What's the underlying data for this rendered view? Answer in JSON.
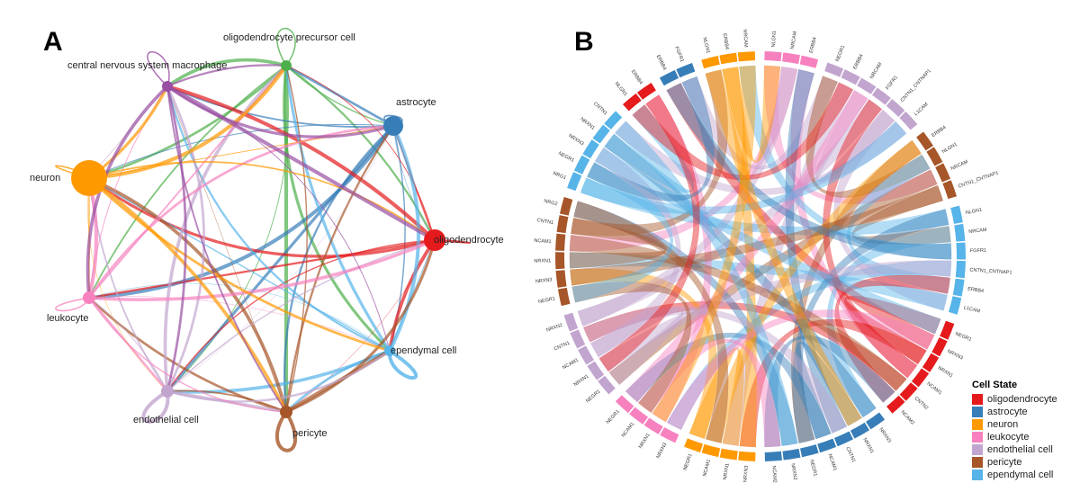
{
  "panel_a": {
    "letter": "A",
    "nodes": [
      {
        "label": "oligodendrocyte precursor cell",
        "color": "#4daf4a"
      },
      {
        "label": "astrocyte",
        "color": "#377eb8"
      },
      {
        "label": "oligodendrocyte",
        "color": "#e41a1c"
      },
      {
        "label": "ependymal cell",
        "color": "#56b4e9"
      },
      {
        "label": "pericyte",
        "color": "#a65628"
      },
      {
        "label": "endothelial cell",
        "color": "#c2a5cf"
      },
      {
        "label": "leukocyte",
        "color": "#f781bf"
      },
      {
        "label": "neuron",
        "color": "#ff9900"
      },
      {
        "label": "central nervous system macrophage",
        "color": "#984ea3"
      }
    ]
  },
  "panel_b": {
    "letter": "B",
    "groups": [
      {
        "color": "#f781bf",
        "genes": [
          "NLGN1",
          "NRCAM",
          "ERBB4"
        ]
      },
      {
        "color": "#c2a5cf",
        "genes": [
          "NEGR1",
          "ERBB4",
          "NRCAM",
          "FGFR1",
          "CNTN1_CNTNAP1",
          "L1CAM"
        ]
      },
      {
        "color": "#a65628",
        "genes": [
          "ERBB4",
          "NLGN1",
          "NRCAM",
          "CNTN1_CNTNAP1"
        ]
      },
      {
        "color": "#56b4e9",
        "genes": [
          "NLGN1",
          "NRCAM",
          "FGFR1",
          "CNTN1_CNTNAP1",
          "ERBB4",
          "L1CAM"
        ]
      },
      {
        "color": "#e41a1c",
        "genes": [
          "NEGR1",
          "NRXN3",
          "NRXN1",
          "NCAM1",
          "CNTN2",
          "NCAM2"
        ]
      },
      {
        "color": "#377eb8",
        "genes": [
          "NRXN3",
          "NRXN1",
          "CNTN1",
          "NCAM1",
          "NEGR1",
          "NRXN2",
          "NCAM2"
        ]
      },
      {
        "color": "#ff9900",
        "genes": [
          "NRXN3",
          "NRXN1",
          "NCAM1",
          "NEGR1"
        ]
      },
      {
        "color": "#f781bf",
        "genes": [
          "NRXN3",
          "NRXN1",
          "NCAM1",
          "NEGR1"
        ]
      },
      {
        "color": "#c2a5cf",
        "genes": [
          "NEGR1",
          "NRXN1",
          "NCAM1",
          "CNTN1",
          "NRXN2"
        ]
      },
      {
        "color": "#a65628",
        "genes": [
          "NEGR1",
          "NRXN3",
          "NRXN1",
          "NCAM1",
          "CNTN1",
          "NRG2"
        ]
      },
      {
        "color": "#56b4e9",
        "genes": [
          "NRG1",
          "NEGR1",
          "NRXN3",
          "NRXN1",
          "CNTN1"
        ]
      },
      {
        "color": "#e41a1c",
        "genes": [
          "NLGN1",
          "ERBB4"
        ]
      },
      {
        "color": "#377eb8",
        "genes": [
          "ERBB4",
          "FGFR1"
        ]
      },
      {
        "color": "#ff9900",
        "genes": [
          "NLGN1",
          "ERBB4",
          "NRCAM"
        ]
      }
    ]
  },
  "legend": {
    "title": "Cell State",
    "items": [
      {
        "label": "oligodendrocyte",
        "color": "#e41a1c"
      },
      {
        "label": "astrocyte",
        "color": "#377eb8"
      },
      {
        "label": "neuron",
        "color": "#ff9900"
      },
      {
        "label": "leukocyte",
        "color": "#f781bf"
      },
      {
        "label": "endothelial cell",
        "color": "#c2a5cf"
      },
      {
        "label": "pericyte",
        "color": "#a65628"
      },
      {
        "label": "ependymal cell",
        "color": "#56b4e9"
      }
    ]
  }
}
